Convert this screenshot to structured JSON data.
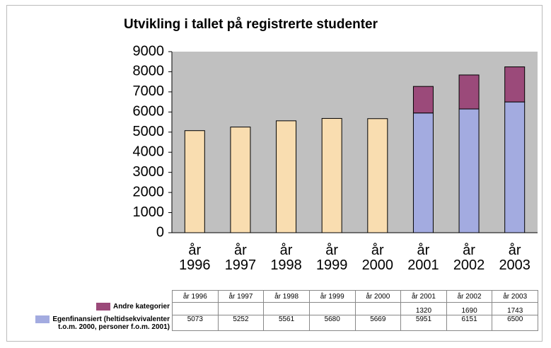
{
  "chart_data": {
    "type": "stacked-bar",
    "title": "Utvikling i tallet på registrerte studenter",
    "categories": [
      "år 1996",
      "år 1997",
      "år 1998",
      "år 1999",
      "år 2000",
      "år 2001",
      "år 2002",
      "år 2003"
    ],
    "series": [
      {
        "name": "Andre kategorier",
        "color": "#9b4a7a",
        "values": [
          null,
          null,
          null,
          null,
          null,
          1320,
          1690,
          1743
        ]
      },
      {
        "name": "Egenfinansiert (heltidsekvivalenter t.o.m. 2000, personer f.o.m. 2001)",
        "color": "#a3abe0",
        "point_colors": [
          "#f9ddb0",
          "#f9ddb0",
          "#f9ddb0",
          "#f9ddb0",
          "#f9ddb0",
          "#a3abe0",
          "#a3abe0",
          "#a3abe0"
        ],
        "values": [
          5073,
          5252,
          5561,
          5680,
          5669,
          5951,
          6151,
          6500
        ]
      }
    ],
    "ylim": [
      0,
      9000
    ],
    "yticks": [
      0,
      1000,
      2000,
      3000,
      4000,
      5000,
      6000,
      7000,
      8000,
      9000
    ],
    "grid": false,
    "plot_background": "#c0c0c0"
  }
}
